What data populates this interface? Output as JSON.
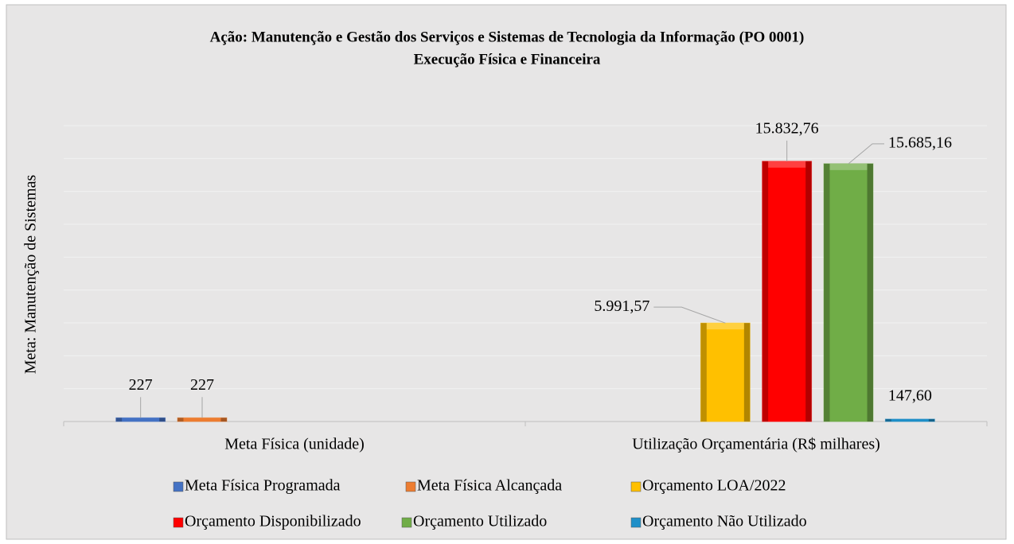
{
  "chart_data": {
    "type": "bar",
    "title": "Ação: Manutenção e Gestão dos Serviços e Sistemas de Tecnologia da Informação (PO 0001)",
    "subtitle": "Execução Física e Financeira",
    "y_label": "Meta: Manutenção de Sistemas",
    "categories": [
      "Meta Física (unidade)",
      "Utilização Orçamentária (R$ milhares)"
    ],
    "series": [
      {
        "name": "Meta Física Programada",
        "color": "#4472c4",
        "values": [
          227,
          null
        ],
        "value_labels": [
          "227",
          null
        ]
      },
      {
        "name": "Meta Física Alcançada",
        "color": "#ed7d31",
        "values": [
          227,
          null
        ],
        "value_labels": [
          "227",
          null
        ]
      },
      {
        "name": "Orçamento LOA/2022",
        "color": "#ffc000",
        "values": [
          null,
          5991.57
        ],
        "value_labels": [
          null,
          "5.991,57"
        ]
      },
      {
        "name": "Orçamento Disponibilizado",
        "color": "#ff0000",
        "values": [
          null,
          15832.76
        ],
        "value_labels": [
          null,
          "15.832,76"
        ]
      },
      {
        "name": "Orçamento Utilizado",
        "color": "#70ad47",
        "values": [
          null,
          15685.16
        ],
        "value_labels": [
          null,
          "15.685,16"
        ]
      },
      {
        "name": "Orçamento Não Utilizado",
        "color": "#1f8fc8",
        "values": [
          null,
          147.6
        ],
        "value_labels": [
          null,
          "147,60"
        ]
      }
    ],
    "ylim": [
      0,
      18000
    ],
    "yticks": [
      0,
      2000,
      4000,
      6000,
      8000,
      10000,
      12000,
      14000,
      16000,
      18000
    ],
    "grid": true,
    "legend": "bottom"
  }
}
